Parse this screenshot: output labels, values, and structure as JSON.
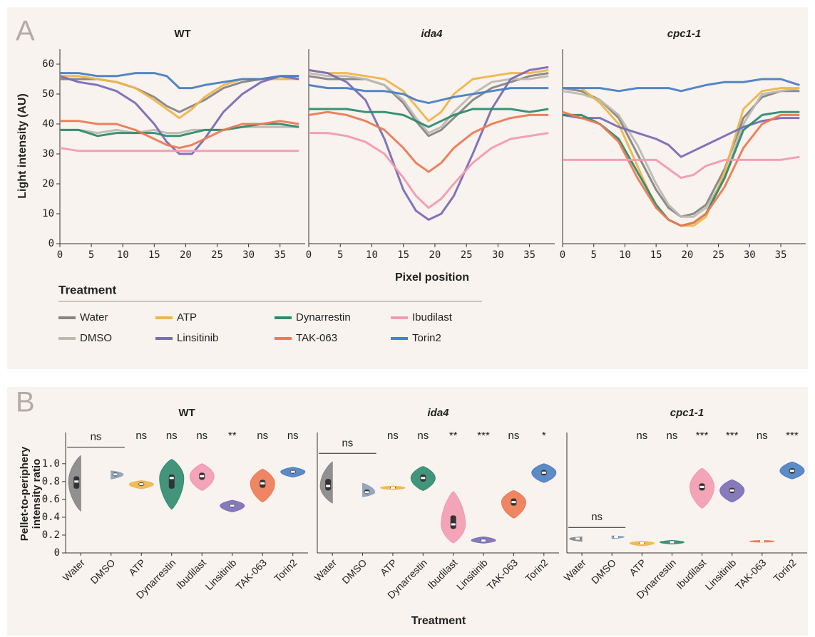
{
  "panel_labels": [
    "A",
    "B"
  ],
  "chart_data": [
    {
      "type": "line",
      "title": "WT",
      "ylabel": "Light intensity (AU)",
      "legend_title": "Treatment",
      "x": [
        0,
        3,
        6,
        9,
        12,
        15,
        17,
        19,
        21,
        23,
        26,
        29,
        32,
        35,
        38
      ],
      "xlim": [
        0,
        39
      ],
      "ylim": [
        0,
        65
      ],
      "xticks": [
        0,
        5,
        10,
        15,
        20,
        25,
        30,
        35
      ],
      "yticks": [
        0,
        10,
        20,
        30,
        40,
        50,
        60
      ],
      "series": [
        {
          "name": "Water",
          "color": "#858585",
          "values": [
            55,
            55,
            55,
            54,
            52,
            49,
            46,
            44,
            46,
            48,
            52,
            54,
            55,
            56,
            56
          ]
        },
        {
          "name": "DMSO",
          "color": "#bdb9b0",
          "values": [
            38,
            38,
            37,
            38,
            37,
            38,
            37,
            37,
            38,
            38,
            38,
            39,
            39,
            39,
            39
          ]
        },
        {
          "name": "ATP",
          "color": "#f0b54a",
          "values": [
            56,
            56,
            55,
            54,
            52,
            48,
            45,
            42,
            45,
            49,
            53,
            55,
            55,
            55,
            55
          ]
        },
        {
          "name": "Linsitinib",
          "color": "#7a6db5",
          "values": [
            56,
            54,
            53,
            51,
            47,
            40,
            34,
            30,
            30,
            35,
            44,
            50,
            54,
            56,
            55
          ]
        },
        {
          "name": "Dynarrestin",
          "color": "#2e8b6e",
          "values": [
            38,
            38,
            36,
            37,
            37,
            37,
            36,
            36,
            37,
            38,
            38,
            39,
            40,
            40,
            39
          ]
        },
        {
          "name": "TAK-063",
          "color": "#ec7a53",
          "values": [
            41,
            41,
            40,
            40,
            38,
            35,
            33,
            32,
            33,
            35,
            38,
            40,
            40,
            41,
            40
          ]
        },
        {
          "name": "Ibudilast",
          "color": "#f29bb0",
          "values": [
            32,
            31,
            31,
            31,
            31,
            31,
            31,
            31,
            31,
            31,
            31,
            31,
            31,
            31,
            31
          ]
        },
        {
          "name": "Torin2",
          "color": "#4a7fc1",
          "values": [
            57,
            57,
            56,
            56,
            57,
            57,
            56,
            52,
            52,
            53,
            54,
            55,
            55,
            56,
            56
          ]
        }
      ]
    },
    {
      "type": "line",
      "title": "ida4",
      "title_italic": true,
      "xlabel": "Pixel position",
      "x": [
        0,
        3,
        6,
        9,
        12,
        15,
        17,
        19,
        21,
        23,
        26,
        29,
        32,
        35,
        38
      ],
      "xlim": [
        0,
        39
      ],
      "ylim": [
        0,
        65
      ],
      "xticks": [
        0,
        5,
        10,
        15,
        20,
        25,
        30,
        35
      ],
      "series": [
        {
          "name": "Water",
          "color": "#858585",
          "values": [
            56,
            55,
            55,
            55,
            53,
            47,
            41,
            36,
            38,
            42,
            48,
            52,
            54,
            56,
            57
          ]
        },
        {
          "name": "DMSO",
          "color": "#bdb9b0",
          "values": [
            57,
            56,
            56,
            55,
            53,
            48,
            42,
            37,
            39,
            44,
            50,
            54,
            55,
            55,
            56
          ]
        },
        {
          "name": "ATP",
          "color": "#f0b54a",
          "values": [
            58,
            57,
            57,
            56,
            55,
            51,
            46,
            41,
            44,
            50,
            55,
            56,
            57,
            57,
            58
          ]
        },
        {
          "name": "Linsitinib",
          "color": "#7a6db5",
          "values": [
            58,
            57,
            54,
            48,
            35,
            18,
            11,
            8,
            10,
            16,
            30,
            45,
            55,
            58,
            59
          ]
        },
        {
          "name": "Dynarrestin",
          "color": "#2e8b6e",
          "values": [
            45,
            45,
            45,
            44,
            44,
            43,
            41,
            39,
            41,
            43,
            45,
            45,
            45,
            44,
            45
          ]
        },
        {
          "name": "TAK-063",
          "color": "#ec7a53",
          "values": [
            43,
            44,
            43,
            41,
            38,
            32,
            27,
            24,
            27,
            32,
            37,
            40,
            42,
            43,
            43
          ]
        },
        {
          "name": "Ibudilast",
          "color": "#f29bb0",
          "values": [
            37,
            37,
            36,
            34,
            30,
            22,
            16,
            12,
            15,
            20,
            27,
            32,
            35,
            36,
            37
          ]
        },
        {
          "name": "Torin2",
          "color": "#4a7fc1",
          "values": [
            53,
            52,
            52,
            51,
            51,
            50,
            48,
            47,
            48,
            49,
            50,
            51,
            52,
            52,
            52
          ]
        }
      ]
    },
    {
      "type": "line",
      "title": "cpc1-1",
      "title_italic": true,
      "x": [
        0,
        3,
        6,
        9,
        12,
        15,
        17,
        19,
        21,
        23,
        26,
        29,
        32,
        35,
        38
      ],
      "xlim": [
        0,
        39
      ],
      "ylim": [
        0,
        65
      ],
      "xticks": [
        0,
        5,
        10,
        15,
        20,
        25,
        30,
        35
      ],
      "series": [
        {
          "name": "Water",
          "color": "#858585",
          "values": [
            52,
            51,
            48,
            42,
            30,
            18,
            12,
            9,
            10,
            13,
            25,
            42,
            49,
            51,
            51
          ]
        },
        {
          "name": "DMSO",
          "color": "#bdb9b0",
          "values": [
            51,
            50,
            48,
            43,
            33,
            20,
            13,
            9,
            9,
            12,
            22,
            40,
            50,
            51,
            52
          ]
        },
        {
          "name": "ATP",
          "color": "#f0b54a",
          "values": [
            52,
            52,
            47,
            40,
            26,
            12,
            8,
            6,
            6,
            9,
            24,
            45,
            51,
            52,
            52
          ]
        },
        {
          "name": "Linsitinib",
          "color": "#7a6db5",
          "values": [
            43,
            42,
            42,
            39,
            37,
            35,
            33,
            29,
            31,
            33,
            36,
            39,
            41,
            42,
            42
          ]
        },
        {
          "name": "Dynarrestin",
          "color": "#2e8b6e",
          "values": [
            43,
            43,
            40,
            35,
            24,
            13,
            8,
            6,
            7,
            10,
            22,
            38,
            43,
            44,
            44
          ]
        },
        {
          "name": "TAK-063",
          "color": "#ec7a53",
          "values": [
            44,
            42,
            40,
            34,
            22,
            12,
            8,
            6,
            7,
            10,
            19,
            32,
            40,
            43,
            43
          ]
        },
        {
          "name": "Ibudilast",
          "color": "#f29bb0",
          "values": [
            28,
            28,
            28,
            28,
            28,
            28,
            25,
            22,
            23,
            26,
            28,
            28,
            28,
            28,
            29
          ]
        },
        {
          "name": "Torin2",
          "color": "#4a7fc1",
          "values": [
            52,
            52,
            52,
            51,
            52,
            52,
            52,
            51,
            52,
            53,
            54,
            54,
            55,
            55,
            53
          ]
        }
      ]
    },
    {
      "type": "violin",
      "title": "WT",
      "ylabel": "Pellet-to-periphery intensity ratio",
      "categories": [
        "Water",
        "DMSO",
        "ATP",
        "Dynarrestin",
        "Ibudilast",
        "Linsitinib",
        "TAK-063",
        "Torin2"
      ],
      "colors": [
        "#858585",
        "#8aa0b8",
        "#f0b54a",
        "#2e8b6e",
        "#f29bb0",
        "#7a6db5",
        "#ec7a53",
        "#4a7fc1"
      ],
      "median": [
        0.8,
        0.88,
        0.77,
        0.84,
        0.86,
        0.53,
        0.78,
        0.91
      ],
      "q1": [
        0.72,
        0.86,
        0.75,
        0.72,
        0.82,
        0.51,
        0.73,
        0.89
      ],
      "q3": [
        0.86,
        0.9,
        0.79,
        0.88,
        0.9,
        0.55,
        0.82,
        0.93
      ],
      "min": [
        0.47,
        0.83,
        0.72,
        0.49,
        0.7,
        0.46,
        0.57,
        0.85
      ],
      "max": [
        1.09,
        0.92,
        0.81,
        1.05,
        1.0,
        0.59,
        0.94,
        0.96
      ],
      "significance": [
        null,
        null,
        "ns",
        "ns",
        "ns",
        "**",
        "ns",
        "ns"
      ],
      "control_significance": "ns",
      "ylim": [
        0,
        1.35
      ],
      "yticks": [
        0,
        0.2,
        0.4,
        0.6,
        0.8,
        {
          "value": 1,
          "label": "1.0"
        }
      ]
    },
    {
      "type": "violin",
      "title": "ida4",
      "title_italic": true,
      "xlabel": "Treatment",
      "categories": [
        "Water",
        "DMSO",
        "ATP",
        "Dynarrestin",
        "Ibudilast",
        "Linsitinib",
        "TAK-063",
        "Torin2"
      ],
      "colors": [
        "#858585",
        "#8aa0b8",
        "#f0b54a",
        "#2e8b6e",
        "#f29bb0",
        "#7a6db5",
        "#ec7a53",
        "#4a7fc1"
      ],
      "median": [
        0.75,
        0.68,
        0.73,
        0.84,
        0.32,
        0.14,
        0.57,
        0.9
      ],
      "q1": [
        0.7,
        0.66,
        0.72,
        0.8,
        0.27,
        0.13,
        0.53,
        0.87
      ],
      "q3": [
        0.83,
        0.71,
        0.74,
        0.88,
        0.42,
        0.16,
        0.61,
        0.93
      ],
      "min": [
        0.56,
        0.63,
        0.71,
        0.7,
        0.11,
        0.11,
        0.39,
        0.79
      ],
      "max": [
        1.02,
        0.78,
        0.75,
        0.97,
        0.69,
        0.18,
        0.7,
        1.0
      ],
      "significance": [
        null,
        null,
        "ns",
        "ns",
        "**",
        "***",
        "ns",
        "*"
      ],
      "control_significance": "ns",
      "ylim": [
        0,
        1.35
      ]
    },
    {
      "type": "violin",
      "title": "cpc1-1",
      "title_italic": true,
      "categories": [
        "Water",
        "DMSO",
        "ATP",
        "Dynarrestin",
        "Ibudilast",
        "Linsitinib",
        "TAK-063",
        "Torin2"
      ],
      "colors": [
        "#858585",
        "#8aa0b8",
        "#f0b54a",
        "#2e8b6e",
        "#f29bb0",
        "#7a6db5",
        "#ec7a53",
        "#4a7fc1"
      ],
      "median": [
        0.16,
        0.18,
        0.11,
        0.12,
        0.74,
        0.7,
        0.13,
        0.92
      ],
      "q1": [
        0.15,
        0.17,
        0.1,
        0.115,
        0.7,
        0.67,
        0.125,
        0.89
      ],
      "q3": [
        0.17,
        0.19,
        0.12,
        0.125,
        0.78,
        0.73,
        0.135,
        0.95
      ],
      "min": [
        0.13,
        0.16,
        0.08,
        0.1,
        0.5,
        0.57,
        0.12,
        0.83
      ],
      "max": [
        0.18,
        0.19,
        0.13,
        0.14,
        0.95,
        0.82,
        0.14,
        1.02
      ],
      "significance": [
        null,
        null,
        "ns",
        "ns",
        "***",
        "***",
        "ns",
        "***"
      ],
      "control_significance": "ns",
      "ylim": [
        0,
        1.35
      ]
    }
  ]
}
